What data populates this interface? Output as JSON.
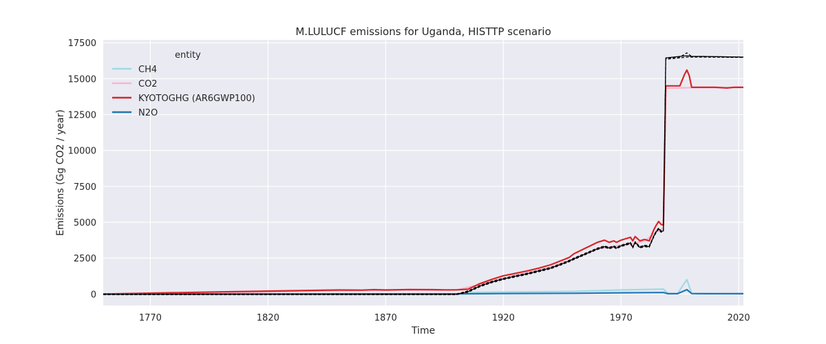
{
  "chart_data": {
    "type": "line",
    "title": "M.LULUCF emissions for Uganda, HISTTP scenario",
    "xlabel": "Time",
    "ylabel": "Emissions (Gg CO2 / year)",
    "xlim": [
      1750,
      2022
    ],
    "ylim": [
      -800,
      17700
    ],
    "xticks": [
      1770,
      1820,
      1870,
      1920,
      1970,
      2020
    ],
    "yticks": [
      0,
      2500,
      5000,
      7500,
      10000,
      12500,
      15000,
      17500
    ],
    "grid": true,
    "legend": {
      "title": "entity",
      "placement": "top-left"
    },
    "series": [
      {
        "name": "CH4",
        "color": "#9edae5",
        "style": "solid",
        "x": [
          1750,
          1900,
          1905,
          1910,
          1950,
          1970,
          1988,
          1990,
          1994,
          1998,
          2000,
          2005,
          2010,
          2015,
          2022
        ],
        "y": [
          0,
          0,
          80,
          120,
          180,
          280,
          340,
          20,
          30,
          1000,
          40,
          30,
          20,
          20,
          20
        ]
      },
      {
        "name": "CO2",
        "color": "#f7b6d2",
        "style": "solid",
        "x": [
          1750,
          1800,
          1850,
          1870,
          1890,
          1900,
          1910,
          1920,
          1930,
          1940,
          1950,
          1960,
          1970,
          1975,
          1980,
          1985,
          1988,
          1989,
          1995,
          2000,
          2010,
          2022
        ],
        "y": [
          0,
          100,
          230,
          260,
          260,
          280,
          650,
          1100,
          1450,
          1850,
          2450,
          3150,
          3400,
          3500,
          3700,
          4300,
          4600,
          14350,
          14350,
          14380,
          14380,
          14380
        ]
      },
      {
        "name": "KYOTOGHG (AR6GWP100)",
        "color": "#d62728",
        "style": "solid",
        "x": [
          1750,
          1800,
          1850,
          1860,
          1865,
          1870,
          1880,
          1890,
          1895,
          1900,
          1905,
          1910,
          1915,
          1920,
          1925,
          1930,
          1935,
          1940,
          1945,
          1948,
          1950,
          1955,
          1960,
          1963,
          1965,
          1967,
          1968,
          1970,
          1972,
          1974,
          1975,
          1976,
          1978,
          1980,
          1982,
          1984,
          1985,
          1986,
          1987,
          1988,
          1989,
          1990,
          1995,
          1997,
          1998,
          1999,
          2000,
          2005,
          2010,
          2015,
          2018,
          2019,
          2022
        ],
        "y": [
          0,
          150,
          280,
          270,
          300,
          280,
          310,
          300,
          290,
          290,
          330,
          720,
          1010,
          1270,
          1430,
          1600,
          1800,
          2030,
          2350,
          2550,
          2800,
          3200,
          3600,
          3750,
          3600,
          3700,
          3600,
          3750,
          3850,
          3950,
          3700,
          4000,
          3700,
          3800,
          3700,
          4500,
          4800,
          5050,
          4850,
          4800,
          14500,
          14500,
          14500,
          15300,
          15600,
          15200,
          14400,
          14400,
          14400,
          14350,
          14400,
          14400,
          14400
        ]
      },
      {
        "name": "N2O",
        "color": "#1f77b4",
        "style": "solid",
        "x": [
          1750,
          1900,
          1920,
          1950,
          1970,
          1988,
          1990,
          1994,
          1998,
          2000,
          2005,
          2022
        ],
        "y": [
          0,
          10,
          30,
          50,
          80,
          100,
          20,
          20,
          300,
          30,
          20,
          20
        ]
      },
      {
        "name": "",
        "color": "#000000",
        "style": "dashed",
        "x": [
          1750,
          1850,
          1900,
          1905,
          1910,
          1915,
          1920,
          1925,
          1930,
          1935,
          1940,
          1945,
          1948,
          1950,
          1955,
          1960,
          1963,
          1965,
          1967,
          1968,
          1970,
          1972,
          1974,
          1975,
          1976,
          1978,
          1980,
          1982,
          1984,
          1985,
          1986,
          1987,
          1988,
          1989,
          1995,
          1998,
          2000,
          2005,
          2022
        ],
        "y": [
          0,
          0,
          0,
          220,
          600,
          880,
          1100,
          1280,
          1450,
          1650,
          1850,
          2150,
          2350,
          2500,
          2850,
          3200,
          3350,
          3250,
          3350,
          3250,
          3400,
          3500,
          3600,
          3300,
          3650,
          3300,
          3400,
          3350,
          4100,
          4400,
          4600,
          4400,
          4450,
          16400,
          16500,
          16800,
          16550,
          16550,
          16500
        ]
      },
      {
        "name": "",
        "color": "#000000",
        "style": "dashed",
        "x": [
          1750,
          1850,
          1900,
          1905,
          1910,
          1915,
          1920,
          1925,
          1930,
          1935,
          1940,
          1945,
          1948,
          1950,
          1955,
          1960,
          1963,
          1965,
          1967,
          1968,
          1970,
          1972,
          1974,
          1975,
          1976,
          1978,
          1980,
          1982,
          1984,
          1985,
          1986,
          1987,
          1988,
          1989,
          1995,
          1998,
          2000,
          2005,
          2022
        ],
        "y": [
          -50,
          -50,
          -50,
          120,
          500,
          780,
          1000,
          1180,
          1350,
          1550,
          1750,
          2050,
          2250,
          2400,
          2750,
          3100,
          3250,
          3150,
          3250,
          3150,
          3300,
          3400,
          3500,
          3200,
          3550,
          3200,
          3300,
          3250,
          4000,
          4300,
          4500,
          4300,
          4350,
          16350,
          16450,
          16500,
          16500,
          16500,
          16480
        ]
      },
      {
        "name": "",
        "color": "#000000",
        "style": "solid",
        "x": [
          1750,
          1850,
          1900,
          1905,
          1910,
          1915,
          1920,
          1925,
          1930,
          1935,
          1940,
          1945,
          1948,
          1950,
          1955,
          1960,
          1963,
          1965,
          1967,
          1968,
          1970,
          1972,
          1974,
          1975,
          1976,
          1978,
          1980,
          1982,
          1984,
          1985,
          1986,
          1987,
          1988,
          1989,
          1995,
          1998,
          2000,
          2005,
          2022
        ],
        "y": [
          -30,
          -30,
          -30,
          170,
          550,
          830,
          1050,
          1230,
          1400,
          1600,
          1800,
          2100,
          2300,
          2450,
          2800,
          3150,
          3300,
          3200,
          3300,
          3200,
          3350,
          3450,
          3550,
          3250,
          3600,
          3250,
          3350,
          3300,
          4050,
          4350,
          4550,
          4350,
          4400,
          16450,
          16550,
          16600,
          16550,
          16550,
          16500
        ]
      }
    ]
  }
}
